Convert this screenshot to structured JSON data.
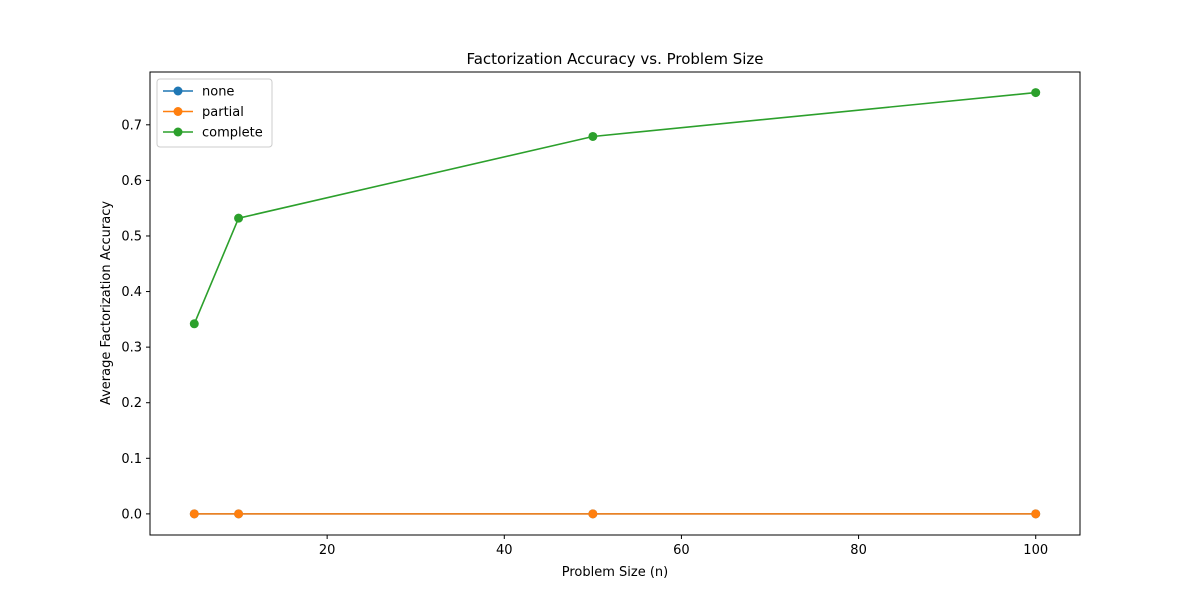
{
  "chart_data": {
    "type": "line",
    "title": "Factorization Accuracy vs. Problem Size",
    "xlabel": "Problem Size (n)",
    "ylabel": "Average Factorization Accuracy",
    "x": [
      5,
      10,
      50,
      100
    ],
    "xlim": [
      0,
      105
    ],
    "ylim": [
      -0.038,
      0.795
    ],
    "xticks": [
      20,
      40,
      60,
      80,
      100
    ],
    "yticks": [
      0.0,
      0.1,
      0.2,
      0.3,
      0.4,
      0.5,
      0.6,
      0.7
    ],
    "grid": false,
    "legend_position": "upper-left",
    "series": [
      {
        "name": "none",
        "values": [
          0.0,
          0.0,
          0.0,
          0.0
        ],
        "color": "#1f77b4"
      },
      {
        "name": "partial",
        "values": [
          0.0,
          0.0,
          0.0,
          0.0
        ],
        "color": "#ff7f0e"
      },
      {
        "name": "complete",
        "values": [
          0.342,
          0.532,
          0.679,
          0.758
        ],
        "color": "#2ca02c"
      }
    ]
  }
}
